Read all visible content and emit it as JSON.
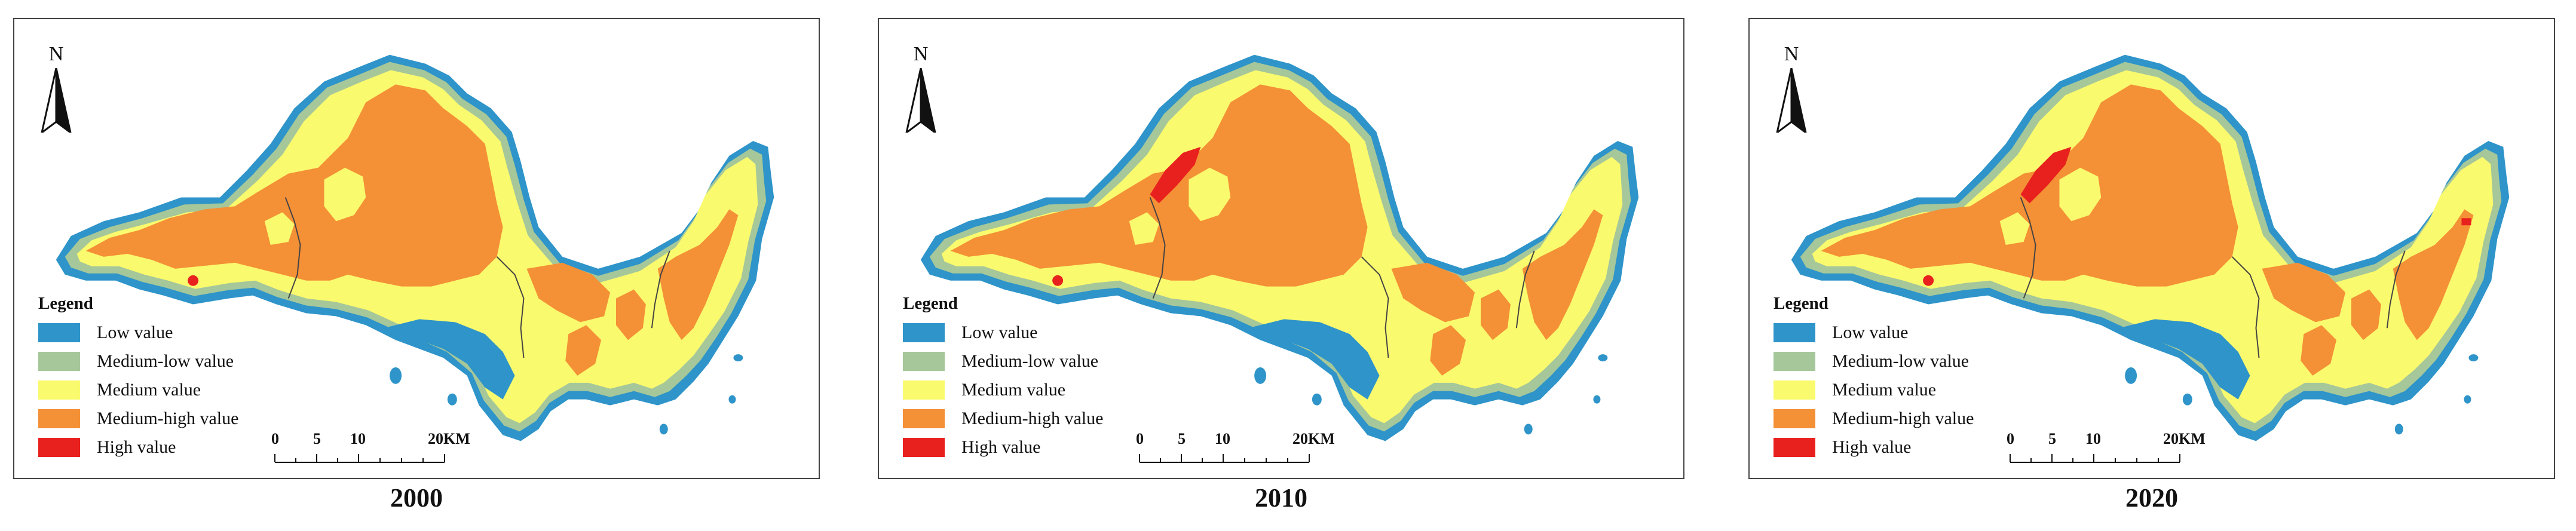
{
  "panels": [
    {
      "year": "2000",
      "variant": 0
    },
    {
      "year": "2010",
      "variant": 1
    },
    {
      "year": "2020",
      "variant": 2
    }
  ],
  "north_label": "N",
  "legend": {
    "title": "Legend",
    "items": [
      {
        "label": "Low value",
        "color": "#2e94c9"
      },
      {
        "label": "Medium-low value",
        "color": "#a5c79a"
      },
      {
        "label": "Medium value",
        "color": "#fafa6e"
      },
      {
        "label": "Medium-high value",
        "color": "#f49036"
      },
      {
        "label": "High value",
        "color": "#e8211f"
      }
    ]
  },
  "scale_bar": {
    "ticks": [
      "0",
      "5",
      "10",
      "20KM"
    ]
  }
}
